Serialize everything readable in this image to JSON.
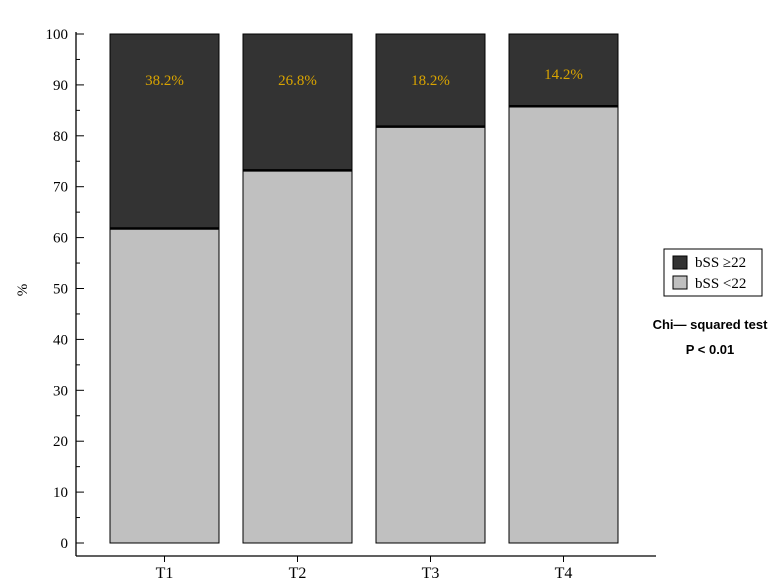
{
  "chart_data": {
    "type": "bar",
    "stacked": true,
    "categories": [
      "T1",
      "T2",
      "T3",
      "T4"
    ],
    "series": [
      {
        "name": "bSS <22",
        "values": [
          61.8,
          73.2,
          81.8,
          85.8
        ],
        "color": "#c0c0c0"
      },
      {
        "name": "bSS ≥22",
        "values": [
          38.2,
          26.8,
          18.2,
          14.2
        ],
        "color": "#333333"
      }
    ],
    "data_labels": [
      "38.2%",
      "26.8%",
      "18.2%",
      "14.2%"
    ],
    "data_label_color": "#d9a400",
    "ylabel": "%",
    "ylim": [
      0,
      100
    ],
    "yticks": [
      0,
      10,
      20,
      30,
      40,
      50,
      60,
      70,
      80,
      90,
      100
    ],
    "grid": false,
    "legend": {
      "placement": "right",
      "entries": [
        {
          "label": "bSS ≥22",
          "color": "#333333"
        },
        {
          "label": "bSS <22",
          "color": "#c0c0c0"
        }
      ]
    },
    "annotation": {
      "line1": "Chi— squared test",
      "line2": "P  <  0.01"
    }
  }
}
